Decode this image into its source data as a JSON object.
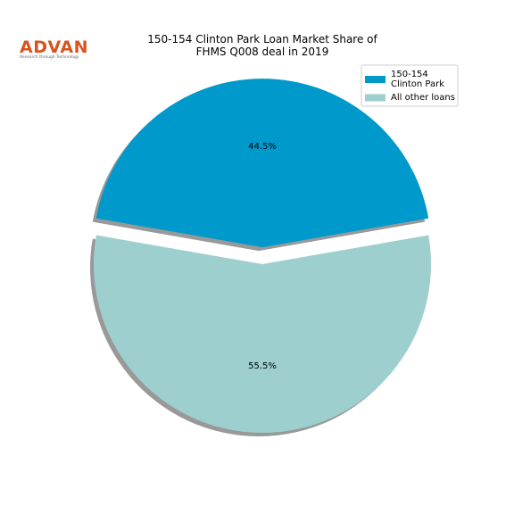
{
  "logo": {
    "name": "ADVAN",
    "tagline": "Research through Technology"
  },
  "chart_data": {
    "type": "pie",
    "title": "150-154 Clinton Park Loan Market Share of\nFHMS Q008 deal in 2019",
    "categories": [
      "150-154\nClinton Park",
      "All other loans"
    ],
    "values": [
      44.5,
      55.5
    ],
    "value_labels": [
      "44.5%",
      "55.5%"
    ],
    "colors": [
      "#0099cc",
      "#9ecfcf"
    ],
    "explode": [
      0.1,
      0
    ],
    "shadow": true,
    "legend": "upper right"
  }
}
